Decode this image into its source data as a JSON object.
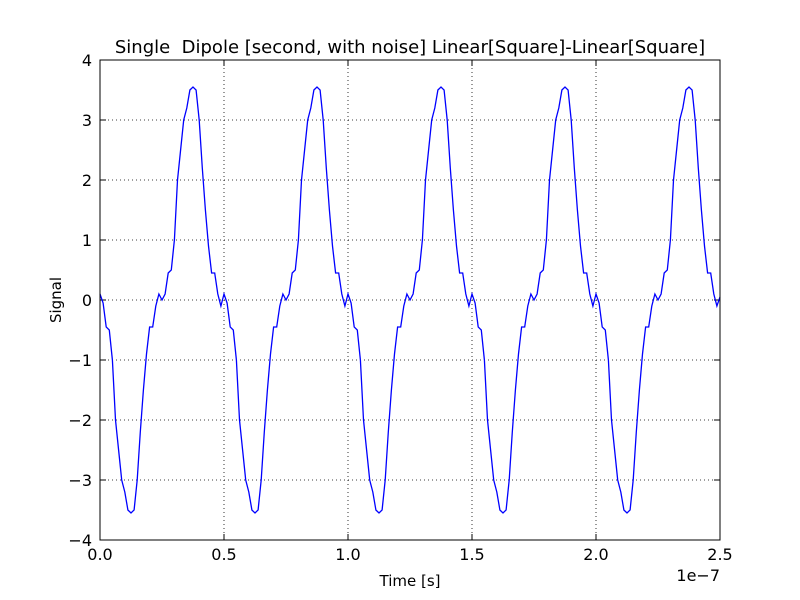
{
  "chart_data": {
    "type": "line",
    "title": "Single  Dipole [second, with noise] Linear[Square]-Linear[Square]",
    "x_label": "Time [s]",
    "y_label": "Signal",
    "x_offset_label": "1e−7",
    "color": "#0000ff",
    "grid": true,
    "xlim": [
      0,
      2.5
    ],
    "ylim": [
      -4,
      4
    ],
    "xticks": [
      {
        "value": 0,
        "label": "0.0"
      },
      0.5,
      {
        "value": 1,
        "label": "1.0"
      },
      1.5,
      {
        "value": 2,
        "label": "2.0"
      },
      2.5
    ],
    "yticks": [
      {
        "value": -4,
        "label": "−4"
      },
      {
        "value": -3,
        "label": "−3"
      },
      {
        "value": -2,
        "label": "−2"
      },
      {
        "value": -1,
        "label": "−1"
      },
      0,
      1,
      2,
      3,
      4
    ],
    "x": [
      0,
      0.0125,
      0.025,
      0.0375,
      0.05,
      0.0625,
      0.075,
      0.0875,
      0.1,
      0.1125,
      0.125,
      0.1375,
      0.15,
      0.1625,
      0.175,
      0.1875,
      0.2,
      0.2125,
      0.225,
      0.2375,
      0.25,
      0.2625,
      0.275,
      0.2875,
      0.3,
      0.3125,
      0.325,
      0.3375,
      0.35,
      0.3625,
      0.375,
      0.3875,
      0.4,
      0.4125,
      0.425,
      0.4375,
      0.45,
      0.4625,
      0.475,
      0.4875,
      0.5,
      0.5125,
      0.525,
      0.5375,
      0.55,
      0.5625,
      0.575,
      0.5875,
      0.6,
      0.6125,
      0.625,
      0.6375,
      0.65,
      0.6625,
      0.675,
      0.6875,
      0.7,
      0.7125,
      0.725,
      0.7375,
      0.75,
      0.7625,
      0.775,
      0.7875,
      0.8,
      0.8125,
      0.825,
      0.8375,
      0.85,
      0.8625,
      0.875,
      0.8875,
      0.9,
      0.9125,
      0.925,
      0.9375,
      0.95,
      0.9625,
      0.975,
      0.9875,
      1,
      1.0125,
      1.025,
      1.0375,
      1.05,
      1.0625,
      1.075,
      1.0875,
      1.1,
      1.1125,
      1.125,
      1.1375,
      1.15,
      1.1625,
      1.175,
      1.1875,
      1.2,
      1.2125,
      1.225,
      1.2375,
      1.25,
      1.2625,
      1.275,
      1.2875,
      1.3,
      1.3125,
      1.325,
      1.3375,
      1.35,
      1.3625,
      1.375,
      1.3875,
      1.4,
      1.4125,
      1.425,
      1.4375,
      1.45,
      1.4625,
      1.475,
      1.4875,
      1.5,
      1.5125,
      1.525,
      1.5375,
      1.55,
      1.5625,
      1.575,
      1.5875,
      1.6,
      1.6125,
      1.625,
      1.6375,
      1.65,
      1.6625,
      1.675,
      1.6875,
      1.7,
      1.7125,
      1.725,
      1.7375,
      1.75,
      1.7625,
      1.775,
      1.7875,
      1.8,
      1.8125,
      1.825,
      1.8375,
      1.85,
      1.8625,
      1.875,
      1.8875,
      1.9,
      1.9125,
      1.925,
      1.9375,
      1.95,
      1.9625,
      1.975,
      1.9875,
      2,
      2.0125,
      2.025,
      2.0375,
      2.05,
      2.0625,
      2.075,
      2.0875,
      2.1,
      2.1125,
      2.125,
      2.1375,
      2.15,
      2.1625,
      2.175,
      2.1875,
      2.2,
      2.2125,
      2.225,
      2.2375,
      2.25,
      2.2625,
      2.275,
      2.2875,
      2.3,
      2.3125,
      2.325,
      2.3375,
      2.35,
      2.3625,
      2.375,
      2.3875,
      2.4,
      2.4125,
      2.425,
      2.4375,
      2.45,
      2.4625,
      2.475,
      2.4875,
      2.5
    ],
    "values": [
      0.1,
      -0.05,
      -0.45,
      -0.5,
      -1.0,
      -2.0,
      -2.5,
      -3.0,
      -3.2,
      -3.5,
      -3.55,
      -3.5,
      -3.0,
      -2.2,
      -1.5,
      -0.9,
      -0.45,
      -0.45,
      -0.1,
      0.1,
      0.0,
      0.1,
      0.45,
      0.5,
      1.0,
      2.0,
      2.5,
      3.0,
      3.2,
      3.5,
      3.55,
      3.5,
      3.0,
      2.2,
      1.5,
      0.9,
      0.45,
      0.45,
      0.1,
      -0.1,
      0.1,
      -0.05,
      -0.45,
      -0.5,
      -1.0,
      -2.0,
      -2.5,
      -3.0,
      -3.2,
      -3.5,
      -3.55,
      -3.5,
      -3.0,
      -2.2,
      -1.5,
      -0.9,
      -0.45,
      -0.45,
      -0.1,
      0.1,
      0.0,
      0.1,
      0.45,
      0.5,
      1.0,
      2.0,
      2.5,
      3.0,
      3.2,
      3.5,
      3.55,
      3.5,
      3.0,
      2.2,
      1.5,
      0.9,
      0.45,
      0.45,
      0.1,
      -0.1,
      0.1,
      -0.05,
      -0.45,
      -0.5,
      -1.0,
      -2.0,
      -2.5,
      -3.0,
      -3.2,
      -3.5,
      -3.55,
      -3.5,
      -3.0,
      -2.2,
      -1.5,
      -0.9,
      -0.45,
      -0.45,
      -0.1,
      0.1,
      0.0,
      0.1,
      0.45,
      0.5,
      1.0,
      2.0,
      2.5,
      3.0,
      3.2,
      3.5,
      3.55,
      3.5,
      3.0,
      2.2,
      1.5,
      0.9,
      0.45,
      0.45,
      0.1,
      -0.1,
      0.1,
      -0.05,
      -0.45,
      -0.5,
      -1.0,
      -2.0,
      -2.5,
      -3.0,
      -3.2,
      -3.5,
      -3.55,
      -3.5,
      -3.0,
      -2.2,
      -1.5,
      -0.9,
      -0.45,
      -0.45,
      -0.1,
      0.1,
      0.0,
      0.1,
      0.45,
      0.5,
      1.0,
      2.0,
      2.5,
      3.0,
      3.2,
      3.5,
      3.55,
      3.5,
      3.0,
      2.2,
      1.5,
      0.9,
      0.45,
      0.45,
      0.1,
      -0.1,
      0.1,
      -0.05,
      -0.45,
      -0.5,
      -1.0,
      -2.0,
      -2.5,
      -3.0,
      -3.2,
      -3.5,
      -3.55,
      -3.5,
      -3.0,
      -2.2,
      -1.5,
      -0.9,
      -0.45,
      -0.45,
      -0.1,
      0.1,
      0.0,
      0.1,
      0.45,
      0.5,
      1.0,
      2.0,
      2.5,
      3.0,
      3.2,
      3.5,
      3.55,
      3.5,
      3.0,
      2.2,
      1.5,
      0.9,
      0.45,
      0.45,
      0.1,
      -0.1,
      0.05
    ]
  }
}
